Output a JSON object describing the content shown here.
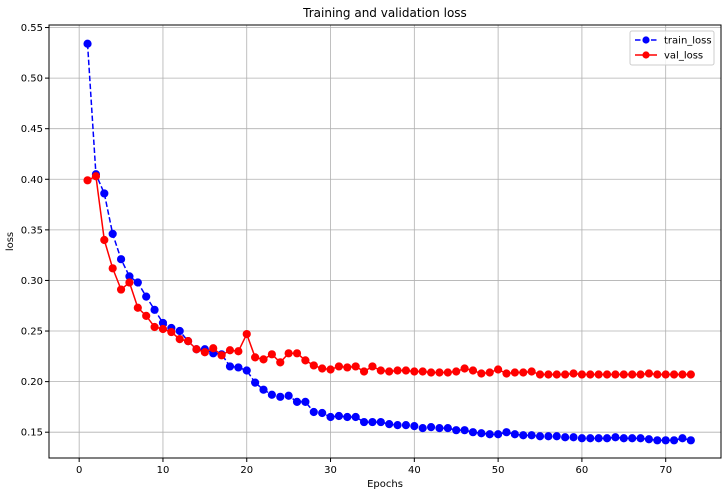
{
  "chart_data": {
    "type": "line",
    "title": "Training and validation loss",
    "xlabel": "Epochs",
    "ylabel": "loss",
    "xlim": [
      -3.6,
      76.6
    ],
    "ylim": [
      0.1245,
      0.5525
    ],
    "x_ticks": [
      0,
      10,
      20,
      30,
      40,
      50,
      60,
      70
    ],
    "y_ticks": [
      0.15,
      0.2,
      0.25,
      0.3,
      0.35,
      0.4,
      0.45,
      0.5,
      0.55
    ],
    "y_tick_labels": [
      "0.15",
      "0.20",
      "0.25",
      "0.30",
      "0.35",
      "0.40",
      "0.45",
      "0.50",
      "0.55"
    ],
    "grid": true,
    "legend_position": "top-right",
    "x": [
      1,
      2,
      3,
      4,
      5,
      6,
      7,
      8,
      9,
      10,
      11,
      12,
      13,
      14,
      15,
      16,
      17,
      18,
      19,
      20,
      21,
      22,
      23,
      24,
      25,
      26,
      27,
      28,
      29,
      30,
      31,
      32,
      33,
      34,
      35,
      36,
      37,
      38,
      39,
      40,
      41,
      42,
      43,
      44,
      45,
      46,
      47,
      48,
      49,
      50,
      51,
      52,
      53,
      54,
      55,
      56,
      57,
      58,
      59,
      60,
      61,
      62,
      63,
      64,
      65,
      66,
      67,
      68,
      69,
      70,
      71,
      72,
      73
    ],
    "series": [
      {
        "name": "train_loss",
        "color": "#0000ff",
        "linestyle": "dashed",
        "values": [
          0.534,
          0.405,
          0.386,
          0.346,
          0.321,
          0.304,
          0.298,
          0.284,
          0.271,
          0.258,
          0.253,
          0.25,
          0.24,
          0.232,
          0.232,
          0.228,
          0.227,
          0.215,
          0.214,
          0.211,
          0.199,
          0.192,
          0.187,
          0.185,
          0.186,
          0.18,
          0.18,
          0.17,
          0.169,
          0.165,
          0.166,
          0.165,
          0.165,
          0.16,
          0.16,
          0.16,
          0.158,
          0.157,
          0.157,
          0.156,
          0.154,
          0.155,
          0.154,
          0.154,
          0.152,
          0.152,
          0.15,
          0.149,
          0.148,
          0.148,
          0.15,
          0.148,
          0.147,
          0.147,
          0.146,
          0.146,
          0.146,
          0.145,
          0.145,
          0.144,
          0.144,
          0.144,
          0.144,
          0.145,
          0.144,
          0.144,
          0.144,
          0.143,
          0.142,
          0.142,
          0.142,
          0.144,
          0.142
        ]
      },
      {
        "name": "val_loss",
        "color": "#ff0000",
        "linestyle": "solid",
        "values": [
          0.399,
          0.403,
          0.34,
          0.312,
          0.291,
          0.298,
          0.273,
          0.265,
          0.254,
          0.252,
          0.249,
          0.242,
          0.24,
          0.232,
          0.229,
          0.233,
          0.226,
          0.231,
          0.23,
          0.247,
          0.224,
          0.222,
          0.227,
          0.219,
          0.228,
          0.228,
          0.221,
          0.216,
          0.213,
          0.212,
          0.215,
          0.214,
          0.215,
          0.21,
          0.215,
          0.211,
          0.21,
          0.211,
          0.211,
          0.21,
          0.21,
          0.209,
          0.209,
          0.209,
          0.21,
          0.213,
          0.211,
          0.208,
          0.209,
          0.212,
          0.208,
          0.209,
          0.209,
          0.21,
          0.207,
          0.207,
          0.207,
          0.207,
          0.208,
          0.207,
          0.207,
          0.207,
          0.207,
          0.207,
          0.207,
          0.207,
          0.207,
          0.208,
          0.207,
          0.207,
          0.207,
          0.207,
          0.207
        ]
      }
    ]
  }
}
